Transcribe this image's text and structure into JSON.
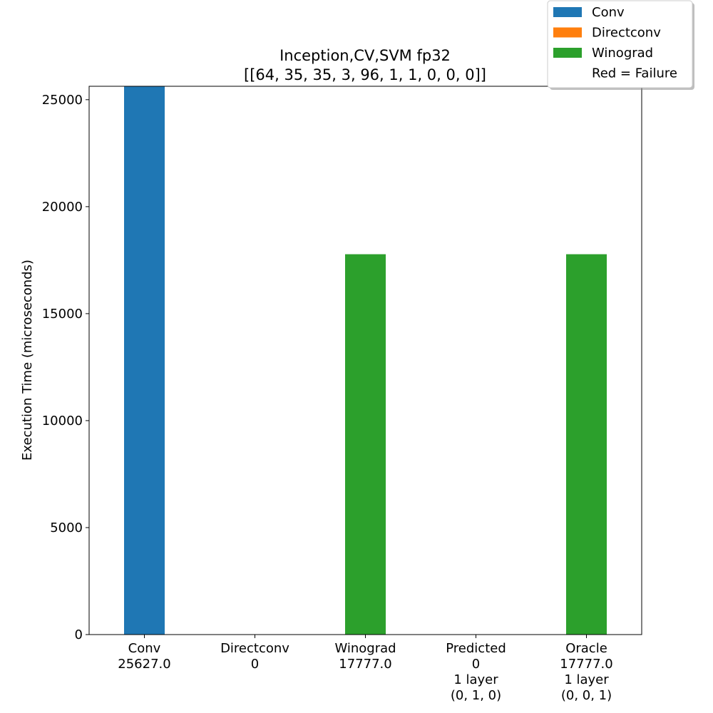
{
  "chart_data": {
    "type": "bar",
    "title_line1": "Inception,CV,SVM fp32",
    "title_line2": "[[64, 35, 35, 3, 96, 1, 1, 0, 0, 0]]",
    "ylabel": "Execution Time (microseconds)",
    "xlabel": "",
    "ylim": [
      0,
      25627
    ],
    "yticks": [
      "0",
      "5000",
      "10000",
      "15000",
      "20000",
      "25000"
    ],
    "ytick_values": [
      0,
      5000,
      10000,
      15000,
      20000,
      25000
    ],
    "grid": false,
    "legend_placement": "top-right",
    "legend": [
      {
        "label": "Conv",
        "color": "#1f77b4"
      },
      {
        "label": "Directconv",
        "color": "#ff7f0e"
      },
      {
        "label": "Winograd",
        "color": "#2ca02c"
      },
      {
        "label": "Red = Failure",
        "color": ""
      }
    ],
    "bars": [
      {
        "value": 25627.0,
        "color": "#1f77b4",
        "label_lines": [
          "Conv",
          "25627.0"
        ],
        "label_color": "#000000"
      },
      {
        "value": 0,
        "color": "#ff7f0e",
        "label_lines": [
          "Directconv",
          "0"
        ],
        "label_color": "#ff0000"
      },
      {
        "value": 17777.0,
        "color": "#2ca02c",
        "label_lines": [
          "Winograd",
          "17777.0"
        ],
        "label_color": "#000000"
      },
      {
        "value": 0,
        "color": "#2ca02c",
        "label_lines": [
          "Predicted",
          "0",
          "1 layer",
          "(0, 1, 0)"
        ],
        "label_color": "#ff0000"
      },
      {
        "value": 17777.0,
        "color": "#2ca02c",
        "label_lines": [
          "Oracle",
          "17777.0",
          "1 layer",
          "(0, 0, 1)"
        ],
        "label_color": "#000000"
      }
    ]
  }
}
